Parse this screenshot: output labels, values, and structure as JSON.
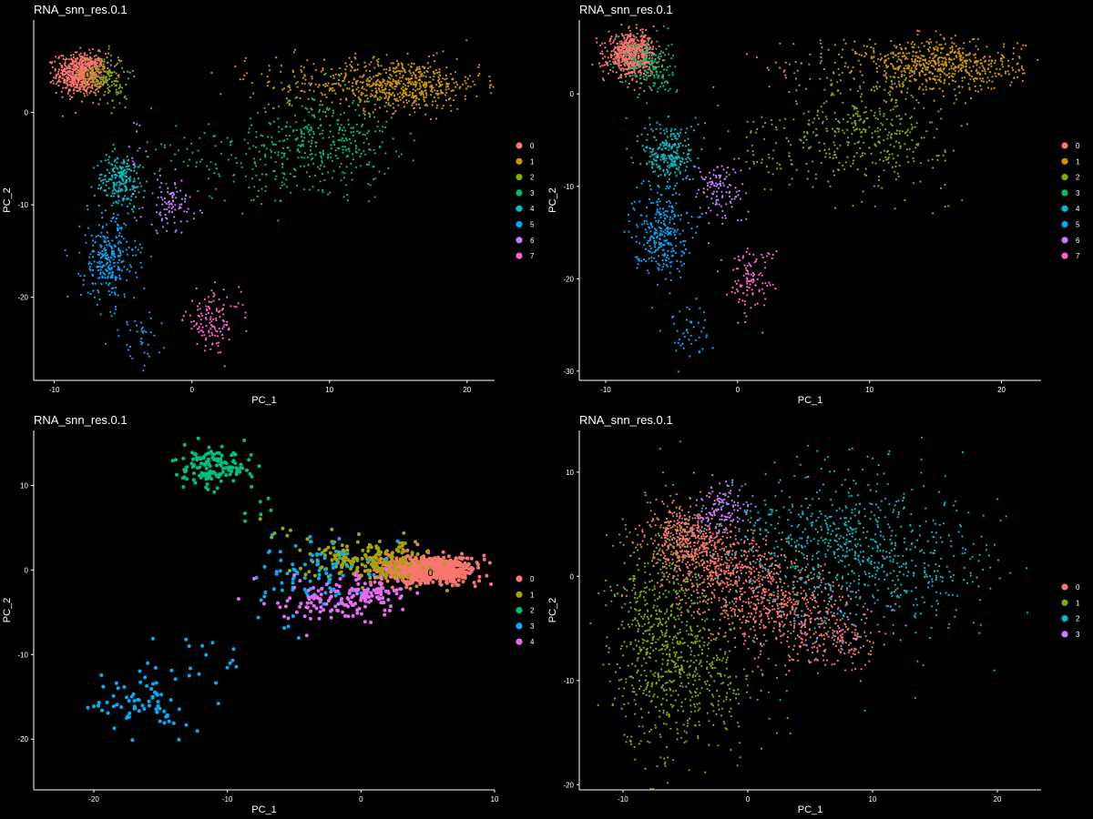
{
  "chart_data": [
    {
      "type": "scatter",
      "title": "RNA_snn_res.0.1",
      "xlabel": "PC_1",
      "ylabel": "PC_2",
      "xlim": [
        -11.5,
        22
      ],
      "ylim": [
        -29,
        10
      ],
      "xticks": [
        -10,
        0,
        10,
        20
      ],
      "yticks": [
        -20,
        -10,
        0
      ],
      "legend": [
        "0",
        "1",
        "2",
        "3",
        "4",
        "5",
        "6",
        "7"
      ],
      "legend_position": "right",
      "point_size": 1.1,
      "cluster_labels": [
        {
          "text": "0",
          "x": -7.6,
          "y": 4.0
        },
        {
          "text": "2",
          "x": -6.6,
          "y": 4.2
        }
      ],
      "clusters": [
        {
          "name": "0",
          "blobs": [
            {
              "cx": -8.0,
              "cy": 4.2,
              "sx": 0.9,
              "sy": 1.1,
              "n": 700
            }
          ]
        },
        {
          "name": "1",
          "blobs": [
            {
              "cx": 15.0,
              "cy": 3.0,
              "sx": 3.0,
              "sy": 1.4,
              "n": 650
            },
            {
              "cx": 7.0,
              "cy": 3.5,
              "sx": 2.5,
              "sy": 1.3,
              "n": 60
            }
          ]
        },
        {
          "name": "2",
          "blobs": [
            {
              "cx": -6.5,
              "cy": 4.0,
              "sx": 0.8,
              "sy": 1.2,
              "n": 140
            },
            {
              "cx": -5.2,
              "cy": 1.5,
              "sx": 0.6,
              "sy": 1.2,
              "n": 20
            }
          ]
        },
        {
          "name": "3",
          "blobs": [
            {
              "cx": 9.5,
              "cy": -3.0,
              "sx": 2.6,
              "sy": 2.5,
              "n": 330
            },
            {
              "cx": 1.0,
              "cy": -4.5,
              "sx": 3.5,
              "sy": 1.8,
              "n": 70
            },
            {
              "cx": 6.0,
              "cy": -6.5,
              "sx": 3.0,
              "sy": 1.8,
              "n": 80
            }
          ]
        },
        {
          "name": "4",
          "blobs": [
            {
              "cx": -5.2,
              "cy": -7.5,
              "sx": 0.9,
              "sy": 1.5,
              "n": 220
            }
          ]
        },
        {
          "name": "5",
          "blobs": [
            {
              "cx": -6.0,
              "cy": -16.0,
              "sx": 1.0,
              "sy": 2.3,
              "n": 280
            },
            {
              "cx": -4.0,
              "cy": -24.5,
              "sx": 0.9,
              "sy": 1.4,
              "n": 40
            }
          ]
        },
        {
          "name": "6",
          "blobs": [
            {
              "cx": -1.5,
              "cy": -10.0,
              "sx": 1.0,
              "sy": 1.5,
              "n": 90
            },
            {
              "cx": -4.0,
              "cy": -4.0,
              "sx": 0.6,
              "sy": 1.8,
              "n": 12
            }
          ]
        },
        {
          "name": "7",
          "blobs": [
            {
              "cx": 1.5,
              "cy": -22.5,
              "sx": 1.0,
              "sy": 1.6,
              "n": 130
            }
          ]
        }
      ]
    },
    {
      "type": "scatter",
      "title": "RNA_snn_res.0.1",
      "xlabel": "PC_1",
      "ylabel": "PC_2",
      "xlim": [
        -12,
        23
      ],
      "ylim": [
        -31,
        8
      ],
      "xticks": [
        -10,
        0,
        10,
        20
      ],
      "yticks": [
        -30,
        -20,
        -10,
        0
      ],
      "legend": [
        "0",
        "1",
        "2",
        "3",
        "4",
        "5",
        "6",
        "7"
      ],
      "legend_position": "right",
      "point_size": 1.1,
      "cluster_labels": [
        {
          "text": "0",
          "x": -7.5,
          "y": 3.9
        },
        {
          "text": "3",
          "x": -6.7,
          "y": 3.9
        }
      ],
      "clusters": [
        {
          "name": "0",
          "blobs": [
            {
              "cx": -8.0,
              "cy": 4.2,
              "sx": 0.9,
              "sy": 1.1,
              "n": 700
            }
          ]
        },
        {
          "name": "1",
          "blobs": [
            {
              "cx": 15.5,
              "cy": 3.0,
              "sx": 3.0,
              "sy": 1.4,
              "n": 620
            },
            {
              "cx": 6.0,
              "cy": 3.5,
              "sx": 3.0,
              "sy": 1.4,
              "n": 60
            }
          ]
        },
        {
          "name": "2",
          "blobs": [
            {
              "cx": 10.0,
              "cy": -4.0,
              "sx": 3.0,
              "sy": 3.0,
              "n": 380
            },
            {
              "cx": 2.5,
              "cy": -6.0,
              "sx": 2.5,
              "sy": 2.5,
              "n": 70
            }
          ]
        },
        {
          "name": "3",
          "blobs": [
            {
              "cx": -6.8,
              "cy": 3.2,
              "sx": 0.9,
              "sy": 1.5,
              "n": 150
            },
            {
              "cx": -5.5,
              "cy": 1.0,
              "sx": 0.5,
              "sy": 1.0,
              "n": 15
            }
          ]
        },
        {
          "name": "4",
          "blobs": [
            {
              "cx": -5.2,
              "cy": -6.5,
              "sx": 1.0,
              "sy": 1.8,
              "n": 260
            }
          ]
        },
        {
          "name": "5",
          "blobs": [
            {
              "cx": -5.8,
              "cy": -15.0,
              "sx": 1.0,
              "sy": 2.3,
              "n": 280
            },
            {
              "cx": -3.8,
              "cy": -25.5,
              "sx": 0.9,
              "sy": 1.5,
              "n": 45
            }
          ]
        },
        {
          "name": "6",
          "blobs": [
            {
              "cx": -1.5,
              "cy": -10.5,
              "sx": 1.0,
              "sy": 1.8,
              "n": 110
            }
          ]
        },
        {
          "name": "7",
          "blobs": [
            {
              "cx": 1.0,
              "cy": -20.0,
              "sx": 0.9,
              "sy": 1.7,
              "n": 110
            }
          ]
        }
      ]
    },
    {
      "type": "scatter",
      "title": "RNA_snn_res.0.1",
      "xlabel": "PC_1",
      "ylabel": "PC_2",
      "xlim": [
        -24.5,
        10
      ],
      "ylim": [
        -26,
        16.5
      ],
      "xticks": [
        -20,
        -10,
        0,
        10
      ],
      "yticks": [
        -20,
        -10,
        0,
        10
      ],
      "legend": [
        "0",
        "1",
        "2",
        "3",
        "4"
      ],
      "legend_position": "right",
      "point_size": 2.0,
      "cluster_labels": [
        {
          "text": "0",
          "x": 5.2,
          "y": -0.4
        }
      ],
      "clusters": [
        {
          "name": "0",
          "blobs": [
            {
              "cx": 5.0,
              "cy": 0.0,
              "sx": 1.8,
              "sy": 0.8,
              "n": 750
            }
          ]
        },
        {
          "name": "1",
          "blobs": [
            {
              "cx": 0.5,
              "cy": 1.0,
              "sx": 2.2,
              "sy": 1.2,
              "n": 200
            },
            {
              "cx": -6.0,
              "cy": 5.0,
              "sx": 0.8,
              "sy": 0.8,
              "n": 6
            }
          ]
        },
        {
          "name": "2",
          "blobs": [
            {
              "cx": -11.0,
              "cy": 12.0,
              "sx": 1.4,
              "sy": 1.2,
              "n": 140
            },
            {
              "cx": -7.5,
              "cy": 7.0,
              "sx": 0.7,
              "sy": 1.0,
              "n": 6
            }
          ]
        },
        {
          "name": "3",
          "blobs": [
            {
              "cx": -3.5,
              "cy": -0.5,
              "sx": 2.2,
              "sy": 2.0,
              "n": 90
            },
            {
              "cx": -16.5,
              "cy": -16.0,
              "sx": 1.8,
              "sy": 1.8,
              "n": 70
            },
            {
              "cx": -11.5,
              "cy": -10.0,
              "sx": 2.2,
              "sy": 1.8,
              "n": 20
            }
          ]
        },
        {
          "name": "4",
          "blobs": [
            {
              "cx": -2.0,
              "cy": -3.5,
              "sx": 2.2,
              "sy": 1.3,
              "n": 110
            },
            {
              "cx": 1.0,
              "cy": -2.5,
              "sx": 1.0,
              "sy": 0.8,
              "n": 60
            }
          ]
        }
      ]
    },
    {
      "type": "scatter",
      "title": "RNA_snn_res.0.1",
      "xlabel": "PC_1",
      "ylabel": "PC_2",
      "xlim": [
        -13.5,
        23.5
      ],
      "ylim": [
        -20.5,
        14
      ],
      "xticks": [
        -10,
        0,
        10,
        20
      ],
      "yticks": [
        -20,
        -10,
        0,
        10
      ],
      "legend": [
        "0",
        "1",
        "2",
        "3"
      ],
      "legend_position": "right",
      "point_size": 1.1,
      "cluster_labels": [],
      "clusters": [
        {
          "name": "0",
          "blobs": [
            {
              "cx": -5.0,
              "cy": 4.0,
              "sx": 1.5,
              "sy": 1.5,
              "n": 350
            },
            {
              "cx": -2.0,
              "cy": 1.0,
              "sx": 2.5,
              "sy": 1.8,
              "n": 500
            },
            {
              "cx": 2.5,
              "cy": -3.0,
              "sx": 3.0,
              "sy": 2.0,
              "n": 500
            },
            {
              "cx": 7.0,
              "cy": -6.5,
              "sx": 2.0,
              "sy": 1.5,
              "n": 150
            }
          ]
        },
        {
          "name": "1",
          "blobs": [
            {
              "cx": -7.0,
              "cy": -5.0,
              "sx": 2.0,
              "sy": 5.5,
              "n": 650
            },
            {
              "cx": -3.0,
              "cy": -10.0,
              "sx": 2.5,
              "sy": 3.5,
              "n": 250
            }
          ]
        },
        {
          "name": "2",
          "blobs": [
            {
              "cx": 7.5,
              "cy": 3.0,
              "sx": 4.5,
              "sy": 4.0,
              "n": 700
            },
            {
              "cx": 15.0,
              "cy": 0.0,
              "sx": 3.0,
              "sy": 3.0,
              "n": 120
            }
          ]
        },
        {
          "name": "3",
          "blobs": [
            {
              "cx": -2.0,
              "cy": 6.5,
              "sx": 1.2,
              "sy": 1.2,
              "n": 130
            },
            {
              "cx": 7.0,
              "cy": -5.5,
              "sx": 2.0,
              "sy": 1.2,
              "n": 40
            }
          ]
        }
      ]
    }
  ],
  "palettes": {
    "k8": [
      "#f8766d",
      "#cd9600",
      "#7cae00",
      "#00be67",
      "#00bfc4",
      "#00a9ff",
      "#c77cff",
      "#ff61cc"
    ],
    "k5": [
      "#f8766d",
      "#a3a500",
      "#00bf7d",
      "#00b0f6",
      "#e76bf3"
    ],
    "k4": [
      "#f8766d",
      "#7cae00",
      "#00bfc4",
      "#c77cff"
    ]
  }
}
